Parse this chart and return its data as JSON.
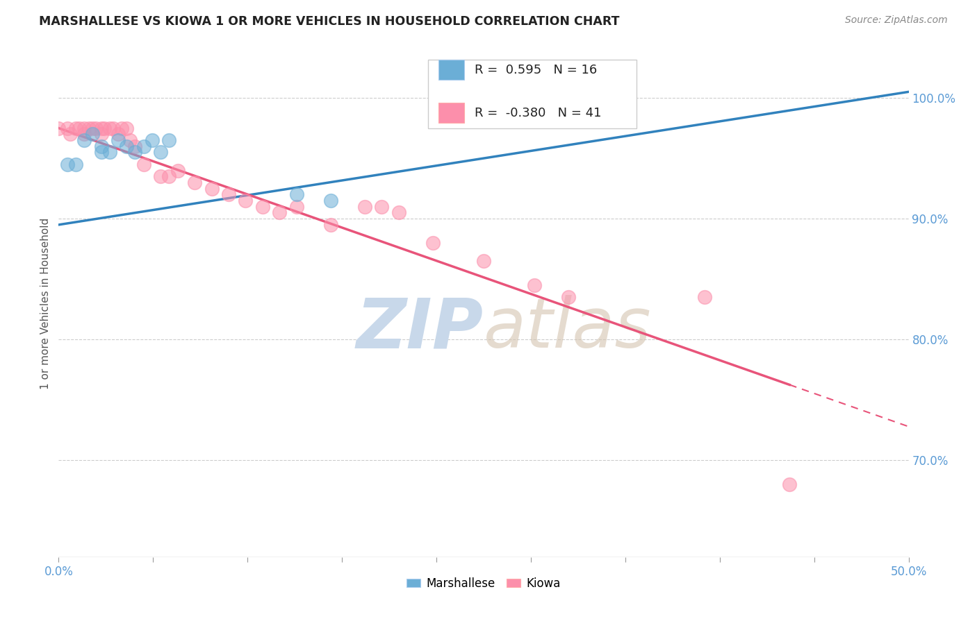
{
  "title": "MARSHALLESE VS KIOWA 1 OR MORE VEHICLES IN HOUSEHOLD CORRELATION CHART",
  "source": "Source: ZipAtlas.com",
  "ylabel": "1 or more Vehicles in Household",
  "xlim": [
    0.0,
    0.5
  ],
  "ylim": [
    0.62,
    1.04
  ],
  "legend_blue_r": "0.595",
  "legend_blue_n": "16",
  "legend_pink_r": "-0.380",
  "legend_pink_n": "41",
  "blue_color": "#6BAED6",
  "pink_color": "#FC8FAB",
  "trend_blue_color": "#3182BD",
  "trend_pink_color": "#E8547A",
  "watermark_color": "#C8D8EA",
  "blue_trend_x0": 0.0,
  "blue_trend_y0": 0.895,
  "blue_trend_x1": 0.5,
  "blue_trend_y1": 1.005,
  "pink_trend_x0": 0.0,
  "pink_trend_y0": 0.975,
  "pink_trend_x1": 0.5,
  "pink_trend_y1": 0.728,
  "marshallese_x": [
    0.005,
    0.01,
    0.015,
    0.02,
    0.025,
    0.025,
    0.03,
    0.035,
    0.04,
    0.045,
    0.05,
    0.055,
    0.06,
    0.065,
    0.14,
    0.16
  ],
  "marshallese_y": [
    0.945,
    0.945,
    0.965,
    0.97,
    0.96,
    0.955,
    0.955,
    0.965,
    0.96,
    0.955,
    0.96,
    0.965,
    0.955,
    0.965,
    0.92,
    0.915
  ],
  "kiowa_x": [
    0.0,
    0.005,
    0.007,
    0.01,
    0.012,
    0.015,
    0.015,
    0.018,
    0.02,
    0.022,
    0.025,
    0.025,
    0.027,
    0.03,
    0.032,
    0.035,
    0.037,
    0.04,
    0.042,
    0.045,
    0.05,
    0.06,
    0.065,
    0.07,
    0.08,
    0.09,
    0.1,
    0.11,
    0.12,
    0.13,
    0.14,
    0.16,
    0.18,
    0.19,
    0.2,
    0.22,
    0.25,
    0.28,
    0.3,
    0.38,
    0.43
  ],
  "kiowa_y": [
    0.975,
    0.975,
    0.97,
    0.975,
    0.975,
    0.97,
    0.975,
    0.975,
    0.975,
    0.975,
    0.97,
    0.975,
    0.975,
    0.975,
    0.975,
    0.97,
    0.975,
    0.975,
    0.965,
    0.96,
    0.945,
    0.935,
    0.935,
    0.94,
    0.93,
    0.925,
    0.92,
    0.915,
    0.91,
    0.905,
    0.91,
    0.895,
    0.91,
    0.91,
    0.905,
    0.88,
    0.865,
    0.845,
    0.835,
    0.835,
    0.68
  ],
  "ytick_positions": [
    0.7,
    0.8,
    0.9,
    1.0
  ]
}
